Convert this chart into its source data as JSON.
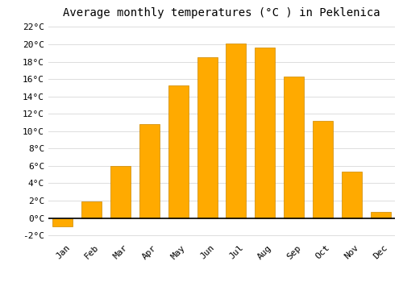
{
  "title": "Average monthly temperatures (°C ) in Peklenica",
  "months": [
    "Jan",
    "Feb",
    "Mar",
    "Apr",
    "May",
    "Jun",
    "Jul",
    "Aug",
    "Sep",
    "Oct",
    "Nov",
    "Dec"
  ],
  "values": [
    -1.0,
    1.9,
    6.0,
    10.8,
    15.3,
    18.5,
    20.1,
    19.6,
    16.3,
    11.2,
    5.3,
    0.7
  ],
  "bar_color": "#FFAA00",
  "bar_edge_color": "#CC8800",
  "background_color": "#FFFFFF",
  "ylim": [
    -2.5,
    22.5
  ],
  "yticks": [
    -2,
    0,
    2,
    4,
    6,
    8,
    10,
    12,
    14,
    16,
    18,
    20,
    22
  ],
  "title_fontsize": 10,
  "tick_fontsize": 8,
  "grid_color": "#DDDDDD"
}
